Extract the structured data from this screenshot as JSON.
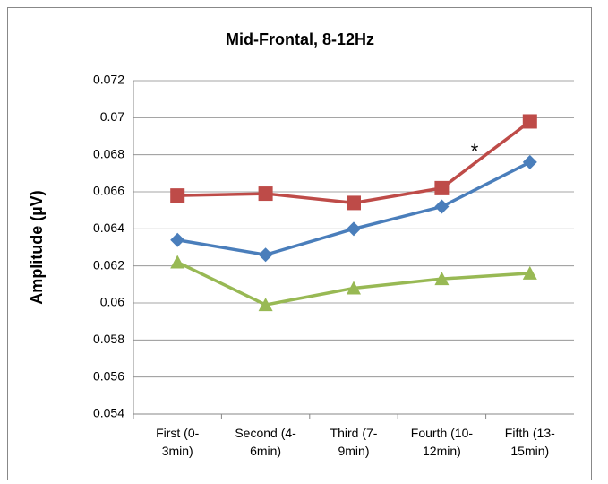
{
  "chart_data": {
    "type": "line",
    "title": "Mid-Frontal, 8-12Hz",
    "y_label": "Amplitude (µV)",
    "categories": [
      "First (0-\n3min)",
      "Second (4-\n6min)",
      "Third (7-\n9min)",
      "Fourth (10-\n12min)",
      "Fifth (13-\n15min)"
    ],
    "series": [
      {
        "color": "#4a7ebb",
        "marker": "diamond",
        "values": [
          0.0634,
          0.0626,
          0.064,
          0.0652,
          0.0676
        ]
      },
      {
        "color": "#be4b48",
        "marker": "square",
        "values": [
          0.0658,
          0.0659,
          0.0654,
          0.0662,
          0.0698
        ]
      },
      {
        "color": "#98b954",
        "marker": "triangle",
        "values": [
          0.0622,
          0.0599,
          0.0608,
          0.0613,
          0.0616
        ]
      }
    ],
    "annotations": [
      {
        "text": "*",
        "color": "#be4b48"
      }
    ],
    "ylim": [
      0.054,
      0.072
    ],
    "yticks": [
      0.054,
      0.056,
      0.058,
      0.06,
      0.062,
      0.064,
      0.066,
      0.068,
      0.07,
      0.072
    ],
    "grid": true
  }
}
